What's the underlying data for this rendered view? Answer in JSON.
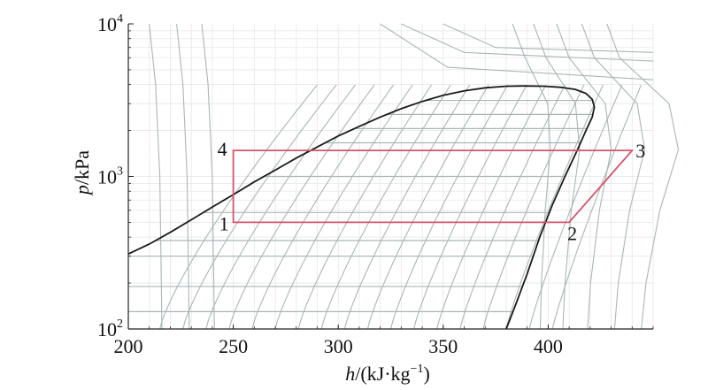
{
  "chart_data": {
    "type": "line",
    "title": "",
    "xlabel": {
      "var": "h",
      "unit": "/(kJ·kg",
      "exp": "−1",
      "close": ")"
    },
    "ylabel": {
      "var": "p",
      "unit": "/kPa"
    },
    "xlim": [
      200,
      450
    ],
    "ylim": [
      100,
      10000
    ],
    "yscale": "log",
    "grid": true,
    "x_ticks": [
      200,
      250,
      300,
      350,
      400
    ],
    "x_tick_labels": [
      "200",
      "250",
      "300",
      "350",
      "400"
    ],
    "y_ticks": [
      100,
      1000,
      10000
    ],
    "y_tick_labels": [
      {
        "base": "10",
        "exp": "2"
      },
      {
        "base": "10",
        "exp": "3"
      },
      {
        "base": "10",
        "exp": "4"
      }
    ],
    "colors": {
      "dome": "#1a1a1a",
      "cycle": "#d5546a",
      "isolines": "#a9b6b6",
      "grid": "#e6e6e6"
    },
    "saturation_dome": {
      "liquid": [
        [
          200,
          310
        ],
        [
          210,
          360
        ],
        [
          220,
          430
        ],
        [
          230,
          520
        ],
        [
          240,
          630
        ],
        [
          250,
          760
        ],
        [
          260,
          920
        ],
        [
          270,
          1100
        ],
        [
          280,
          1320
        ],
        [
          290,
          1560
        ],
        [
          300,
          1840
        ],
        [
          310,
          2130
        ],
        [
          320,
          2450
        ],
        [
          330,
          2780
        ],
        [
          340,
          3100
        ],
        [
          350,
          3400
        ],
        [
          360,
          3640
        ],
        [
          370,
          3810
        ],
        [
          380,
          3900
        ],
        [
          388,
          3920
        ]
      ],
      "vapor": [
        [
          388,
          3920
        ],
        [
          398,
          3900
        ],
        [
          406,
          3840
        ],
        [
          413,
          3720
        ],
        [
          418,
          3500
        ],
        [
          421,
          3200
        ],
        [
          422,
          2850
        ],
        [
          421,
          2450
        ],
        [
          418,
          2000
        ],
        [
          414,
          1500
        ],
        [
          408,
          1000
        ],
        [
          402,
          650
        ],
        [
          396,
          400
        ],
        [
          390,
          230
        ],
        [
          385,
          150
        ],
        [
          380,
          100
        ]
      ]
    },
    "series": [
      {
        "points": [
          {
            "label": "1",
            "h": 250,
            "p": 500
          },
          {
            "label": "2",
            "h": 410,
            "p": 500
          },
          {
            "label": "3",
            "h": 440,
            "p": 1480
          },
          {
            "label": "4",
            "h": 250,
            "p": 1480
          }
        ]
      }
    ]
  }
}
